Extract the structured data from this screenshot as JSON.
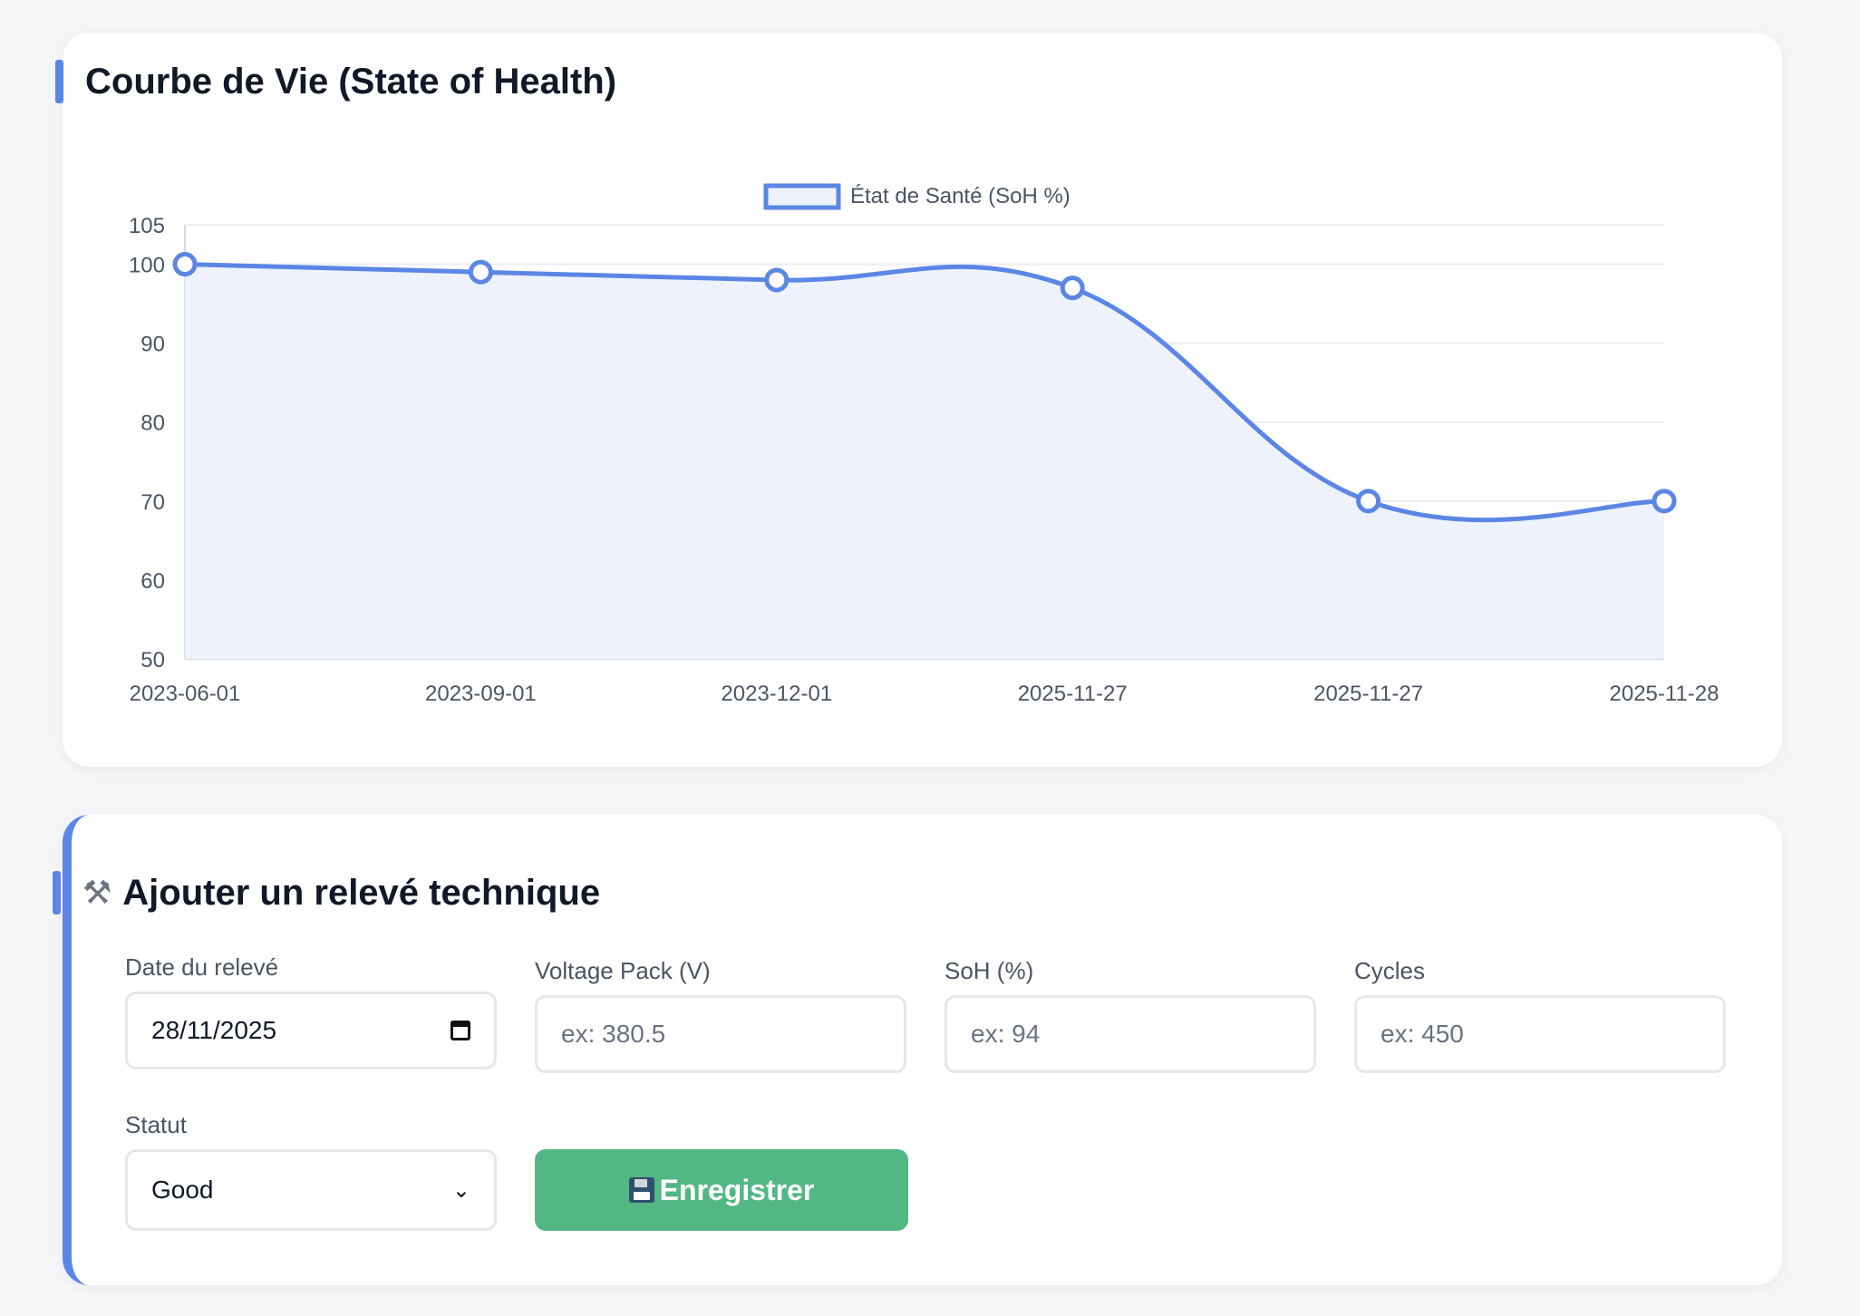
{
  "chart_section": {
    "title": "Courbe de Vie (State of Health)"
  },
  "chart_data": {
    "type": "line",
    "title": "Courbe de Vie (State of Health)",
    "categories": [
      "2023-06-01",
      "2023-09-01",
      "2023-12-01",
      "2025-11-27",
      "2025-11-27",
      "2025-11-28"
    ],
    "series": [
      {
        "name": "État de Santé (SoH %)",
        "values": [
          100,
          99,
          98,
          97,
          70,
          70
        ]
      }
    ],
    "ylim": [
      50,
      105
    ],
    "y_ticks": [
      "105",
      "100",
      "90",
      "80",
      "70",
      "60",
      "50"
    ],
    "grid": true,
    "fill": true,
    "legend_position": "top",
    "colors": {
      "line": "#5b86e5",
      "fill": "#eef2fd",
      "grid": "#ebedf0"
    }
  },
  "form": {
    "icon": "tools-icon",
    "title": "Ajouter un relevé technique",
    "date_label": "Date du relevé",
    "date_value": "28/11/2025",
    "voltage_label": "Voltage Pack (V)",
    "voltage_placeholder": "ex: 380.5",
    "soh_label": "SoH (%)",
    "soh_placeholder": "ex: 94",
    "cycles_label": "Cycles",
    "cycles_placeholder": "ex: 450",
    "status_label": "Statut",
    "status_value": "Good",
    "save_label": "Enregistrer",
    "save_icon": "floppy-disk-icon",
    "accent_color": "#5b86e5",
    "button_color": "#53b784"
  }
}
